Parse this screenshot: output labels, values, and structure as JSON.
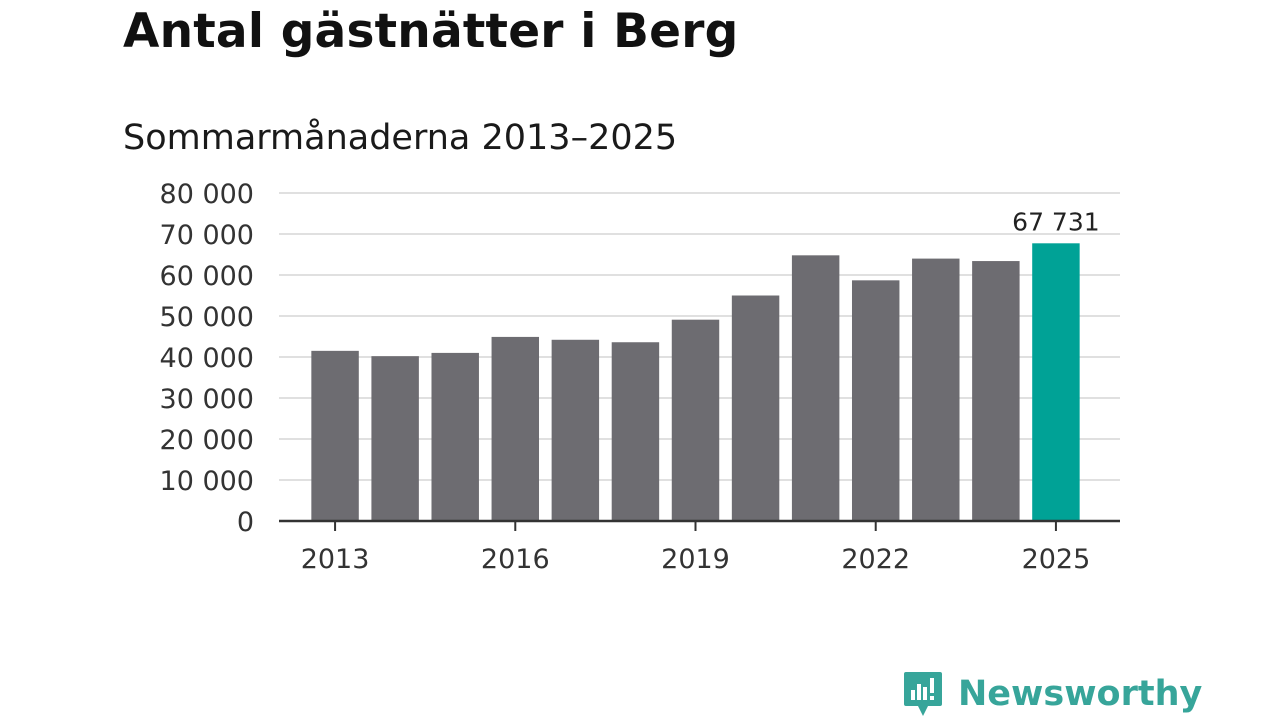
{
  "title": "Antal gästnätter i Berg",
  "subtitle": "Sommarmånaderna 2013–2025",
  "brand": {
    "name": "Newsworthy",
    "icon": "newsworthy-logo-icon",
    "color": "#37a59a"
  },
  "colors": {
    "bar": "#6d6c71",
    "highlight": "#00a296",
    "grid": "#e0e0e0",
    "axis": "#333333"
  },
  "chart_data": {
    "type": "bar",
    "categories": [
      "2013",
      "2014",
      "2015",
      "2016",
      "2017",
      "2018",
      "2019",
      "2020",
      "2021",
      "2022",
      "2023",
      "2024",
      "2025"
    ],
    "values": [
      41500,
      40200,
      41000,
      44900,
      44200,
      43600,
      49100,
      55000,
      64800,
      58700,
      64000,
      63400,
      67731
    ],
    "highlight_index": 12,
    "data_labels": [
      {
        "index": 12,
        "text": "67 731"
      }
    ],
    "x_ticks": [
      "2013",
      "2016",
      "2019",
      "2022",
      "2025"
    ],
    "y_ticks": [
      {
        "value": 0,
        "label": "0"
      },
      {
        "value": 10000,
        "label": "10 000"
      },
      {
        "value": 20000,
        "label": "20 000"
      },
      {
        "value": 30000,
        "label": "30 000"
      },
      {
        "value": 40000,
        "label": "40 000"
      },
      {
        "value": 50000,
        "label": "50 000"
      },
      {
        "value": 60000,
        "label": "60 000"
      },
      {
        "value": 70000,
        "label": "70 000"
      },
      {
        "value": 80000,
        "label": "80 000"
      }
    ],
    "ylim": [
      0,
      80000
    ],
    "grid": true,
    "title": "Antal gästnätter i Berg",
    "subtitle": "Sommarmånaderna 2013–2025"
  }
}
